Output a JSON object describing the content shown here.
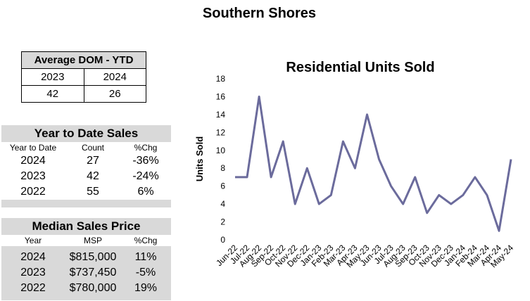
{
  "page_title": "Southern Shores",
  "dom": {
    "title": "Average DOM - YTD",
    "years": [
      "2023",
      "2024"
    ],
    "values": [
      "42",
      "26"
    ]
  },
  "ytd": {
    "title": "Year to Date Sales",
    "headers": [
      "Year to Date",
      "Count",
      "%Chg"
    ],
    "rows": [
      [
        "2024",
        "27",
        "-36%"
      ],
      [
        "2023",
        "42",
        "-24%"
      ],
      [
        "2022",
        "55",
        "6%"
      ]
    ]
  },
  "msp": {
    "title": "Median Sales Price",
    "headers": [
      "Year",
      "MSP",
      "%Chg"
    ],
    "rows": [
      [
        "2024",
        "$815,000",
        "11%"
      ],
      [
        "2023",
        "$737,450",
        "-5%"
      ],
      [
        "2022",
        "$780,000",
        "19%"
      ]
    ]
  },
  "chart_data": {
    "type": "line",
    "title": "Residential Units Sold",
    "xlabel": "",
    "ylabel": "Units Sold",
    "ylim": [
      0,
      18
    ],
    "yticks": [
      0,
      2,
      4,
      6,
      8,
      10,
      12,
      14,
      16,
      18
    ],
    "categories": [
      "Jun-22",
      "Jul-22",
      "Aug-22",
      "Sep-22",
      "Oct-22",
      "Nov-22",
      "Dec-22",
      "Jan-23",
      "Feb-23",
      "Mar-23",
      "Apr-23",
      "May-23",
      "Jun-23",
      "Jul-23",
      "Aug-23",
      "Sep-23",
      "Oct-23",
      "Nov-23",
      "Dec-23",
      "Jan-24",
      "Feb-24",
      "Mar-24",
      "Apr-24",
      "May-24"
    ],
    "series": [
      {
        "values": [
          7,
          7,
          16,
          7,
          11,
          4,
          8,
          4,
          5,
          11,
          8,
          14,
          9,
          6,
          4,
          7,
          3,
          5,
          4,
          5,
          7,
          5,
          1,
          9
        ]
      }
    ],
    "line_color": "#6b6b9c",
    "grid": false,
    "legend": "none"
  }
}
